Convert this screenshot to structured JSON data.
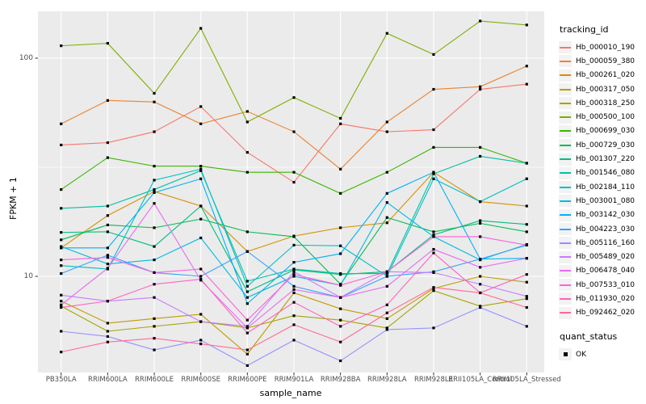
{
  "figure": {
    "y_axis_title": "FPKM + 1",
    "x_axis_title": "sample_name",
    "y_tick_labels": [
      "100",
      "10"
    ],
    "legend_title": "tracking_id",
    "quant_legend_title": "quant_status",
    "quant_legend_item": "OK"
  },
  "colors": {
    "panel_bg": "#EBEBEB",
    "grid": "#FFFFFF",
    "tick_mark": "#333333",
    "tick_text": "#4D4D4D",
    "marker": "#000000",
    "legend_key_bg": "#F2F2F2"
  },
  "chart_data": {
    "type": "line",
    "title": "",
    "xlabel": "sample_name",
    "ylabel": "FPKM + 1",
    "y_scale": "log10",
    "y_ticks": [
      100,
      10
    ],
    "y_minor_ticks": [
      31.6
    ],
    "ylim": [
      3.6,
      164
    ],
    "grid": "white major+minor gridlines on grey panel",
    "legend_position": "right",
    "point_marker": "small black square at every vertex (quant_status = OK)",
    "x_categories": [
      "PB350LA",
      "RRIM600LA",
      "RRIM600LE",
      "RRIM600SE",
      "RRIM600PE",
      "RRIM901LA",
      "RRIM928BA",
      "RRIM928LA",
      "RRIM928LE",
      "RRII105LA_Control",
      "RRII105LA_Stressed"
    ],
    "series": [
      {
        "name": "Hb_000010_190",
        "color": "#F8766D",
        "values": [
          40,
          41,
          46,
          60,
          37,
          27,
          50,
          46,
          47,
          72,
          76
        ]
      },
      {
        "name": "Hb_000059_380",
        "color": "#EA8331",
        "values": [
          50,
          64,
          63,
          50,
          57,
          46,
          31,
          51,
          72,
          74,
          92
        ]
      },
      {
        "name": "Hb_000261_020",
        "color": "#D89000",
        "values": [
          13.5,
          19,
          24.5,
          21,
          13,
          15.3,
          16.7,
          17.6,
          30,
          22,
          21
        ]
      },
      {
        "name": "Hb_000317_050",
        "color": "#C09B00",
        "values": [
          7.7,
          6.1,
          6.4,
          6.7,
          4.4,
          8.4,
          7.1,
          6.4,
          8.8,
          10,
          9.4
        ]
      },
      {
        "name": "Hb_000318_250",
        "color": "#A3A500",
        "values": [
          7.3,
          5.6,
          5.9,
          6.2,
          5.8,
          6.6,
          6.3,
          5.8,
          8.6,
          7.3,
          7.9
        ]
      },
      {
        "name": "Hb_000500_100",
        "color": "#7CAE00",
        "values": [
          114,
          117,
          69,
          137,
          51,
          66,
          53,
          130,
          104,
          148,
          142
        ]
      },
      {
        "name": "Hb_000699_030",
        "color": "#39B600",
        "values": [
          25,
          35,
          32,
          32,
          30,
          30,
          24,
          30,
          39,
          39,
          33
        ]
      },
      {
        "name": "Hb_000729_030",
        "color": "#00BB4E",
        "values": [
          14.7,
          17.2,
          16.7,
          18.3,
          16,
          15.2,
          9.2,
          18.6,
          16,
          17.5,
          16
        ]
      },
      {
        "name": "Hb_001307_220",
        "color": "#00BF7D",
        "values": [
          15.9,
          16,
          13.7,
          21,
          8.5,
          10.7,
          10.2,
          10.5,
          15.5,
          18,
          17.3
        ]
      },
      {
        "name": "Hb_001546_080",
        "color": "#00C1A3",
        "values": [
          20.5,
          21,
          25,
          30.5,
          9.5,
          10.8,
          10.3,
          10.3,
          29.5,
          35.5,
          33
        ]
      },
      {
        "name": "Hb_002184_110",
        "color": "#00BFC4",
        "values": [
          11.2,
          10.8,
          27.6,
          31,
          9,
          13.9,
          13.8,
          10,
          28,
          22,
          28
        ]
      },
      {
        "name": "Hb_003001_080",
        "color": "#00BAE0",
        "values": [
          13.7,
          11.4,
          11.9,
          15,
          8,
          10,
          9.1,
          21.8,
          15.2,
          11.9,
          14
        ]
      },
      {
        "name": "Hb_003142_030",
        "color": "#00B0F6",
        "values": [
          13.5,
          13.5,
          24.2,
          28,
          7.5,
          11.6,
          12.7,
          24,
          30,
          12,
          12.1
        ]
      },
      {
        "name": "Hb_004223_030",
        "color": "#35A2FF",
        "values": [
          10.3,
          12.5,
          10.4,
          10,
          13,
          9,
          8,
          10,
          10.5,
          12,
          13.9
        ]
      },
      {
        "name": "Hb_005116_160",
        "color": "#9590FF",
        "values": [
          5.6,
          5.3,
          4.6,
          5.1,
          3.9,
          5.1,
          4.1,
          5.7,
          5.8,
          7.2,
          5.9
        ]
      },
      {
        "name": "Hb_005489_020",
        "color": "#C77CFF",
        "values": [
          8.2,
          7.7,
          8,
          6.2,
          5.9,
          10.5,
          8,
          10.5,
          10.4,
          9.2,
          8.1
        ]
      },
      {
        "name": "Hb_006478_040",
        "color": "#E76BF3",
        "values": [
          7.4,
          10.9,
          21.6,
          9.6,
          5.8,
          8.7,
          8,
          9,
          13.3,
          11,
          12.1
        ]
      },
      {
        "name": "Hb_007533_010",
        "color": "#FA62DB",
        "values": [
          11.9,
          12.2,
          10.4,
          10.8,
          6.3,
          10.2,
          9.1,
          10.5,
          15.2,
          15.2,
          13.9
        ]
      },
      {
        "name": "Hb_011930_020",
        "color": "#FF62BC",
        "values": [
          7.2,
          7.7,
          9.2,
          9.7,
          5.5,
          7.6,
          5.9,
          7.4,
          12.8,
          8.4,
          10.2
        ]
      },
      {
        "name": "Hb_092462_020",
        "color": "#FF6A98",
        "values": [
          4.5,
          5,
          5.2,
          4.9,
          4.6,
          6,
          5,
          6.8,
          8.9,
          8.4,
          7.2
        ]
      }
    ]
  }
}
